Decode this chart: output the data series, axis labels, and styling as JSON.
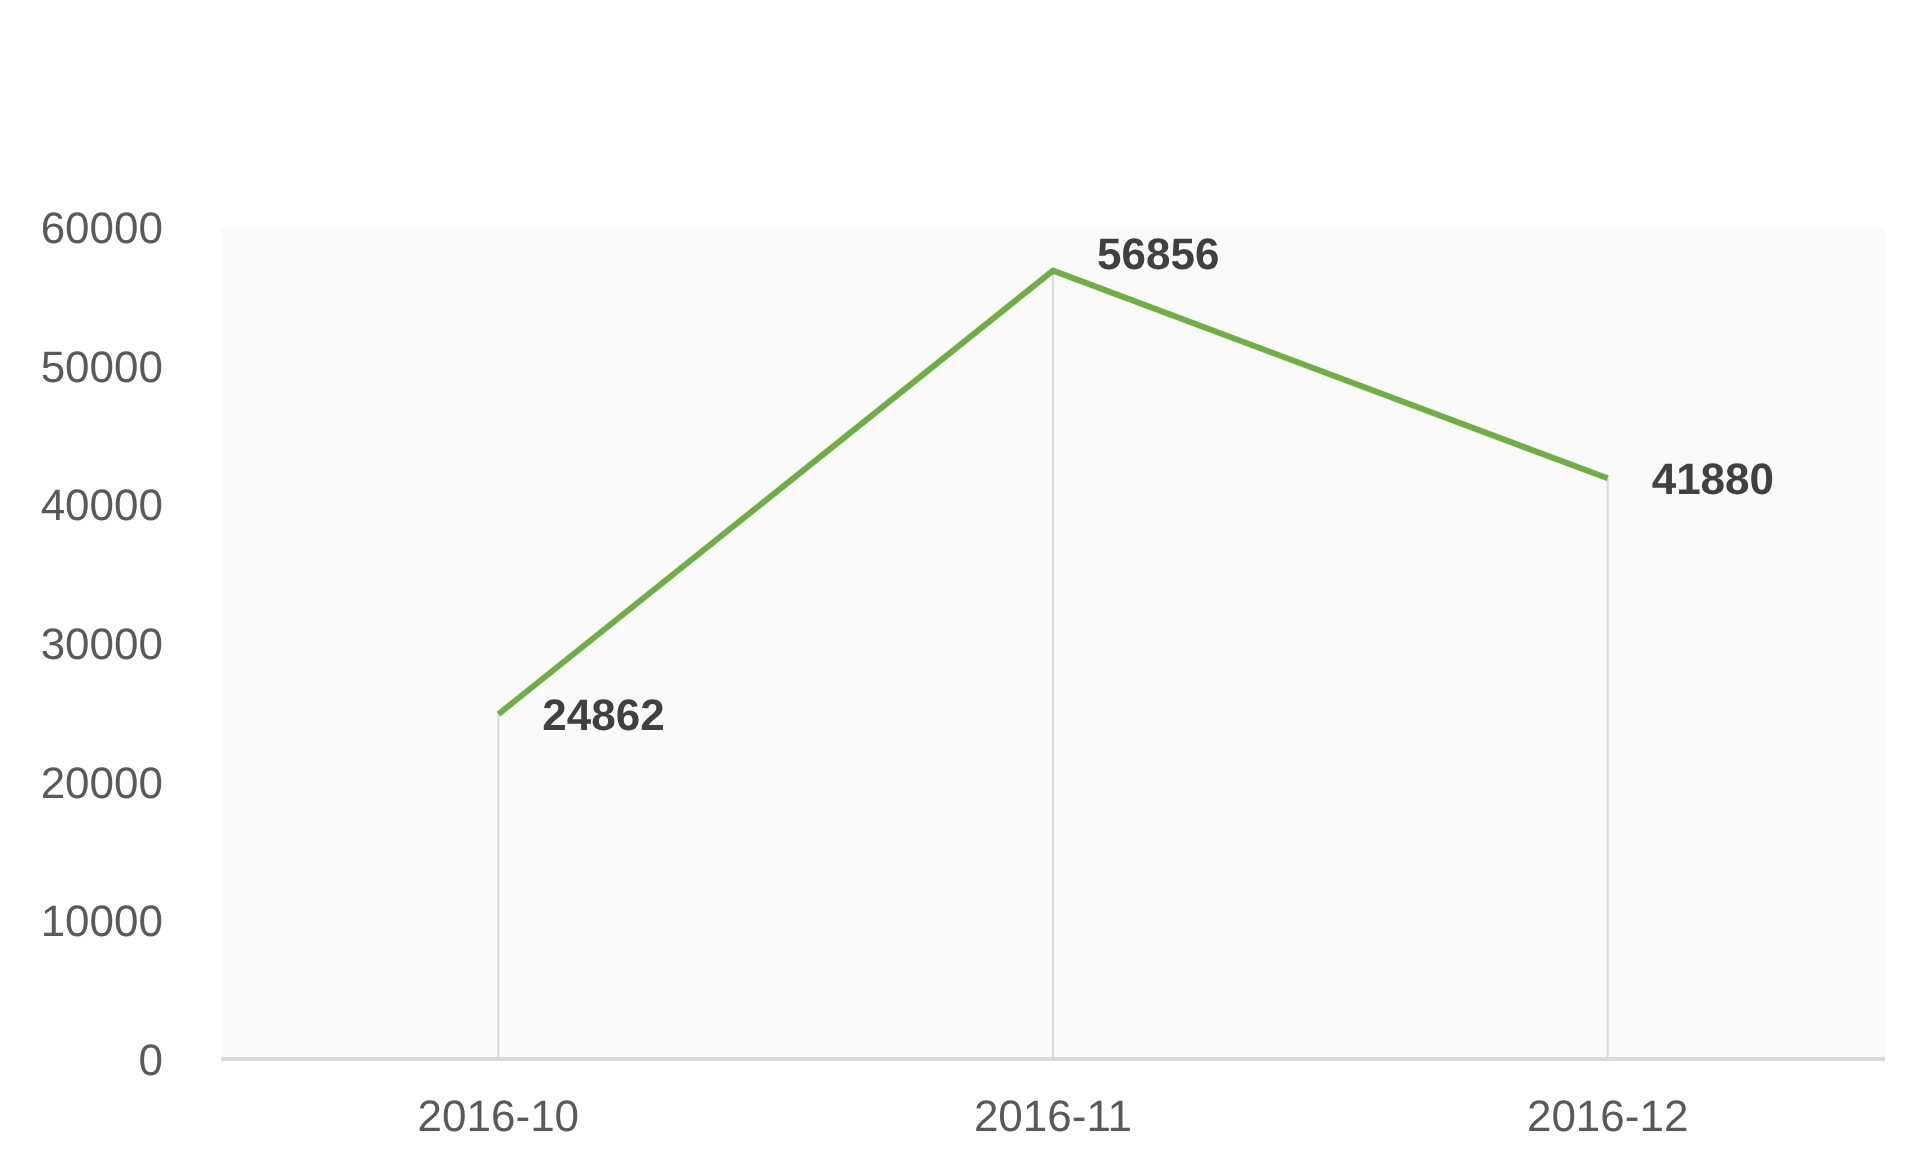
{
  "chart_data": {
    "type": "line",
    "categories": [
      "2016-10",
      "2016-11",
      "2016-12"
    ],
    "series": [
      {
        "color": "#70ad47",
        "values": [
          24862,
          56856,
          41880
        ]
      }
    ],
    "ylim": [
      0,
      60000
    ],
    "yticks": [
      0,
      10000,
      20000,
      30000,
      40000,
      50000,
      60000
    ],
    "data_labels": true
  }
}
